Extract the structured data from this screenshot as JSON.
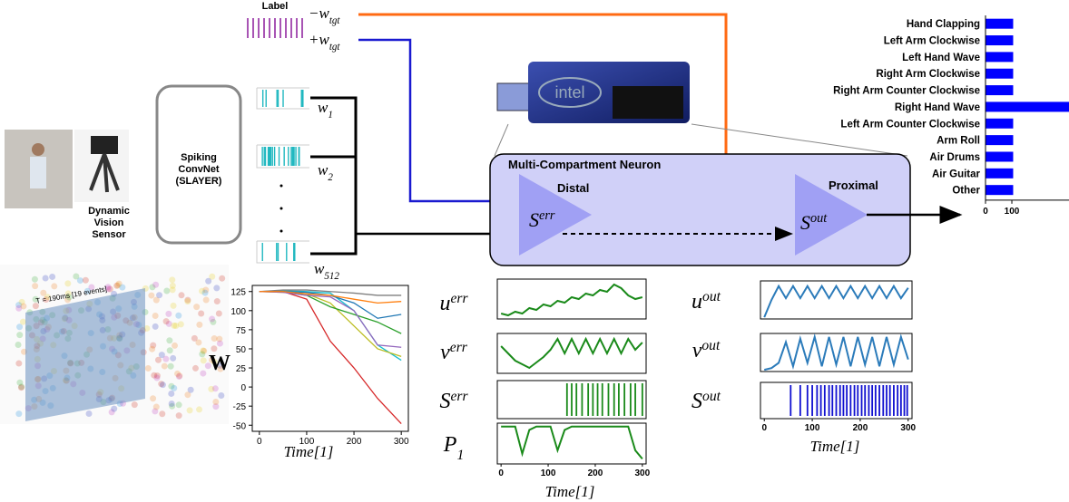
{
  "inputs": {
    "label": "Label",
    "neg_target": {
      "text": "−w",
      "sub": "tgt"
    },
    "pos_target": {
      "text": "+w",
      "sub": "tgt"
    },
    "weights": [
      {
        "text": "w",
        "sub": "1"
      },
      {
        "text": "w",
        "sub": "2"
      },
      {
        "text": "w",
        "sub": "512"
      }
    ]
  },
  "sensor": {
    "name": [
      "Dynamic",
      "Vision",
      "Sensor"
    ],
    "event_caption": "T = 190ms [19 events]"
  },
  "convnet": {
    "lines": [
      "Spiking",
      "ConvNet",
      "(SLAYER)"
    ]
  },
  "chip": {
    "logo": "intel"
  },
  "neuron": {
    "title": "Multi-Compartment Neuron",
    "distal": "Distal",
    "proximal": "Proximal",
    "s_err": {
      "text": "S",
      "sup": "err"
    },
    "s_out": {
      "text": "S",
      "sup": "out"
    }
  },
  "chart_data": [
    {
      "type": "bar",
      "orientation": "horizontal",
      "color": "#0000ff",
      "categories": [
        "Hand Clapping",
        "Left Arm Clockwise",
        "Left Hand Wave",
        "Right Arm Clockwise",
        "Right Arm Counter Clockwise",
        "Right Hand Wave",
        "Left Arm Counter Clockwise",
        "Arm Roll",
        "Air Drums",
        "Air Guitar",
        "Other"
      ],
      "values": [
        105,
        105,
        105,
        105,
        105,
        317,
        105,
        105,
        105,
        105,
        105
      ],
      "xlim": [
        0,
        317
      ],
      "xticks": [
        0,
        100
      ]
    },
    {
      "type": "line",
      "y_label": "W",
      "x_label": "Time[1]",
      "x": [
        0,
        50,
        100,
        150,
        200,
        250,
        300
      ],
      "series": [
        {
          "color": "#d62728",
          "values": [
            125,
            125,
            115,
            60,
            25,
            -15,
            -48
          ]
        },
        {
          "color": "#17becf",
          "values": [
            125,
            126,
            125,
            123,
            100,
            55,
            35
          ]
        },
        {
          "color": "#bcbd22",
          "values": [
            125,
            124,
            122,
            110,
            80,
            50,
            40
          ]
        },
        {
          "color": "#1f77b4",
          "values": [
            125,
            125,
            124,
            120,
            110,
            90,
            95
          ]
        },
        {
          "color": "#2ca02c",
          "values": [
            125,
            125,
            120,
            105,
            95,
            85,
            70
          ]
        },
        {
          "color": "#7f7f7f",
          "values": [
            125,
            127,
            127,
            125,
            123,
            120,
            120
          ]
        },
        {
          "color": "#9467bd",
          "values": [
            125,
            124,
            120,
            118,
            100,
            55,
            52
          ]
        },
        {
          "color": "#ff7f0e",
          "values": [
            125,
            125,
            122,
            120,
            115,
            110,
            112
          ]
        }
      ],
      "xlim": [
        -15,
        315
      ],
      "ylim": [
        -58,
        133
      ],
      "xticks": [
        0,
        100,
        200,
        300
      ],
      "yticks": [
        -50,
        -25,
        0,
        25,
        50,
        75,
        100,
        125
      ]
    },
    {
      "type": "line",
      "label": {
        "text": "u",
        "sup": "err"
      },
      "color": "#1a8a1a",
      "x": [
        0,
        15,
        30,
        45,
        60,
        75,
        90,
        105,
        120,
        135,
        150,
        165,
        180,
        195,
        210,
        225,
        240,
        255,
        270,
        285,
        300
      ],
      "values": [
        0.1,
        0.05,
        0.15,
        0.1,
        0.25,
        0.2,
        0.35,
        0.3,
        0.45,
        0.4,
        0.55,
        0.5,
        0.65,
        0.6,
        0.75,
        0.7,
        0.9,
        0.8,
        0.6,
        0.5,
        0.55
      ],
      "xlim": [
        -8,
        308
      ],
      "ylim": [
        -0.05,
        1.05
      ]
    },
    {
      "type": "line",
      "label": {
        "text": "v",
        "sup": "err"
      },
      "color": "#1a8a1a",
      "x": [
        0,
        15,
        30,
        45,
        60,
        75,
        90,
        105,
        120,
        135,
        150,
        165,
        180,
        195,
        210,
        225,
        240,
        255,
        270,
        285,
        300
      ],
      "values": [
        0.7,
        0.5,
        0.3,
        0.2,
        0.1,
        0.25,
        0.4,
        0.6,
        0.9,
        0.5,
        0.9,
        0.5,
        0.9,
        0.5,
        0.9,
        0.5,
        0.9,
        0.5,
        0.9,
        0.6,
        0.8
      ],
      "xlim": [
        -8,
        308
      ],
      "ylim": [
        -0.05,
        1.05
      ]
    },
    {
      "type": "event",
      "label": {
        "text": "S",
        "sup": "err"
      },
      "color": "#1a8a1a",
      "x": [
        140,
        150,
        160,
        172,
        185,
        195,
        205,
        215,
        228,
        240,
        250,
        262,
        275,
        285,
        300
      ],
      "xlim": [
        -8,
        308
      ]
    },
    {
      "type": "line",
      "label": {
        "text": "P",
        "sub": "1"
      },
      "color": "#1a8a1a",
      "x_label": "Time[1]",
      "x": [
        0,
        15,
        30,
        45,
        60,
        75,
        90,
        105,
        120,
        135,
        150,
        165,
        180,
        195,
        210,
        225,
        240,
        255,
        270,
        285,
        300
      ],
      "values": [
        1,
        1,
        1,
        0.2,
        0.9,
        1,
        1,
        1,
        0.3,
        0.9,
        1,
        1,
        1,
        1,
        1,
        1,
        1,
        1,
        1,
        0.3,
        0.05
      ],
      "xlim": [
        -8,
        308
      ],
      "ylim": [
        -0.1,
        1.1
      ],
      "xticks": [
        0,
        100,
        200,
        300
      ]
    },
    {
      "type": "line",
      "label": {
        "text": "u",
        "sup": "out"
      },
      "color": "#2b7bba",
      "x": [
        0,
        15,
        30,
        45,
        60,
        75,
        90,
        105,
        120,
        135,
        150,
        165,
        180,
        195,
        210,
        225,
        240,
        255,
        270,
        285,
        300
      ],
      "values": [
        0,
        0.5,
        0.9,
        0.55,
        0.9,
        0.55,
        0.9,
        0.55,
        0.9,
        0.55,
        0.9,
        0.55,
        0.9,
        0.55,
        0.9,
        0.55,
        0.9,
        0.55,
        0.9,
        0.55,
        0.85
      ],
      "xlim": [
        -8,
        308
      ],
      "ylim": [
        -0.05,
        1.05
      ]
    },
    {
      "type": "line",
      "label": {
        "text": "v",
        "sup": "out"
      },
      "color": "#2b7bba",
      "x": [
        0,
        15,
        30,
        45,
        60,
        75,
        90,
        105,
        120,
        135,
        150,
        165,
        180,
        195,
        210,
        225,
        240,
        255,
        270,
        285,
        300
      ],
      "values": [
        0,
        0.05,
        0.2,
        0.8,
        0.1,
        0.9,
        0.2,
        0.95,
        0.1,
        0.95,
        0.15,
        0.95,
        0.1,
        0.95,
        0.15,
        0.95,
        0.1,
        0.95,
        0.15,
        0.95,
        0.3
      ],
      "xlim": [
        -8,
        308
      ],
      "ylim": [
        -0.05,
        1.05
      ]
    },
    {
      "type": "event",
      "label": {
        "text": "S",
        "sup": "out"
      },
      "color": "#1010d0",
      "x_label": "Time[1]",
      "x": [
        55,
        75,
        90,
        100,
        110,
        118,
        126,
        135,
        142,
        150,
        158,
        165,
        172,
        180,
        188,
        195,
        203,
        210,
        218,
        225,
        232,
        240,
        248,
        255,
        262,
        270,
        278,
        285,
        292,
        298
      ],
      "xlim": [
        -8,
        308
      ],
      "xticks": [
        0,
        100,
        200,
        300
      ]
    }
  ]
}
